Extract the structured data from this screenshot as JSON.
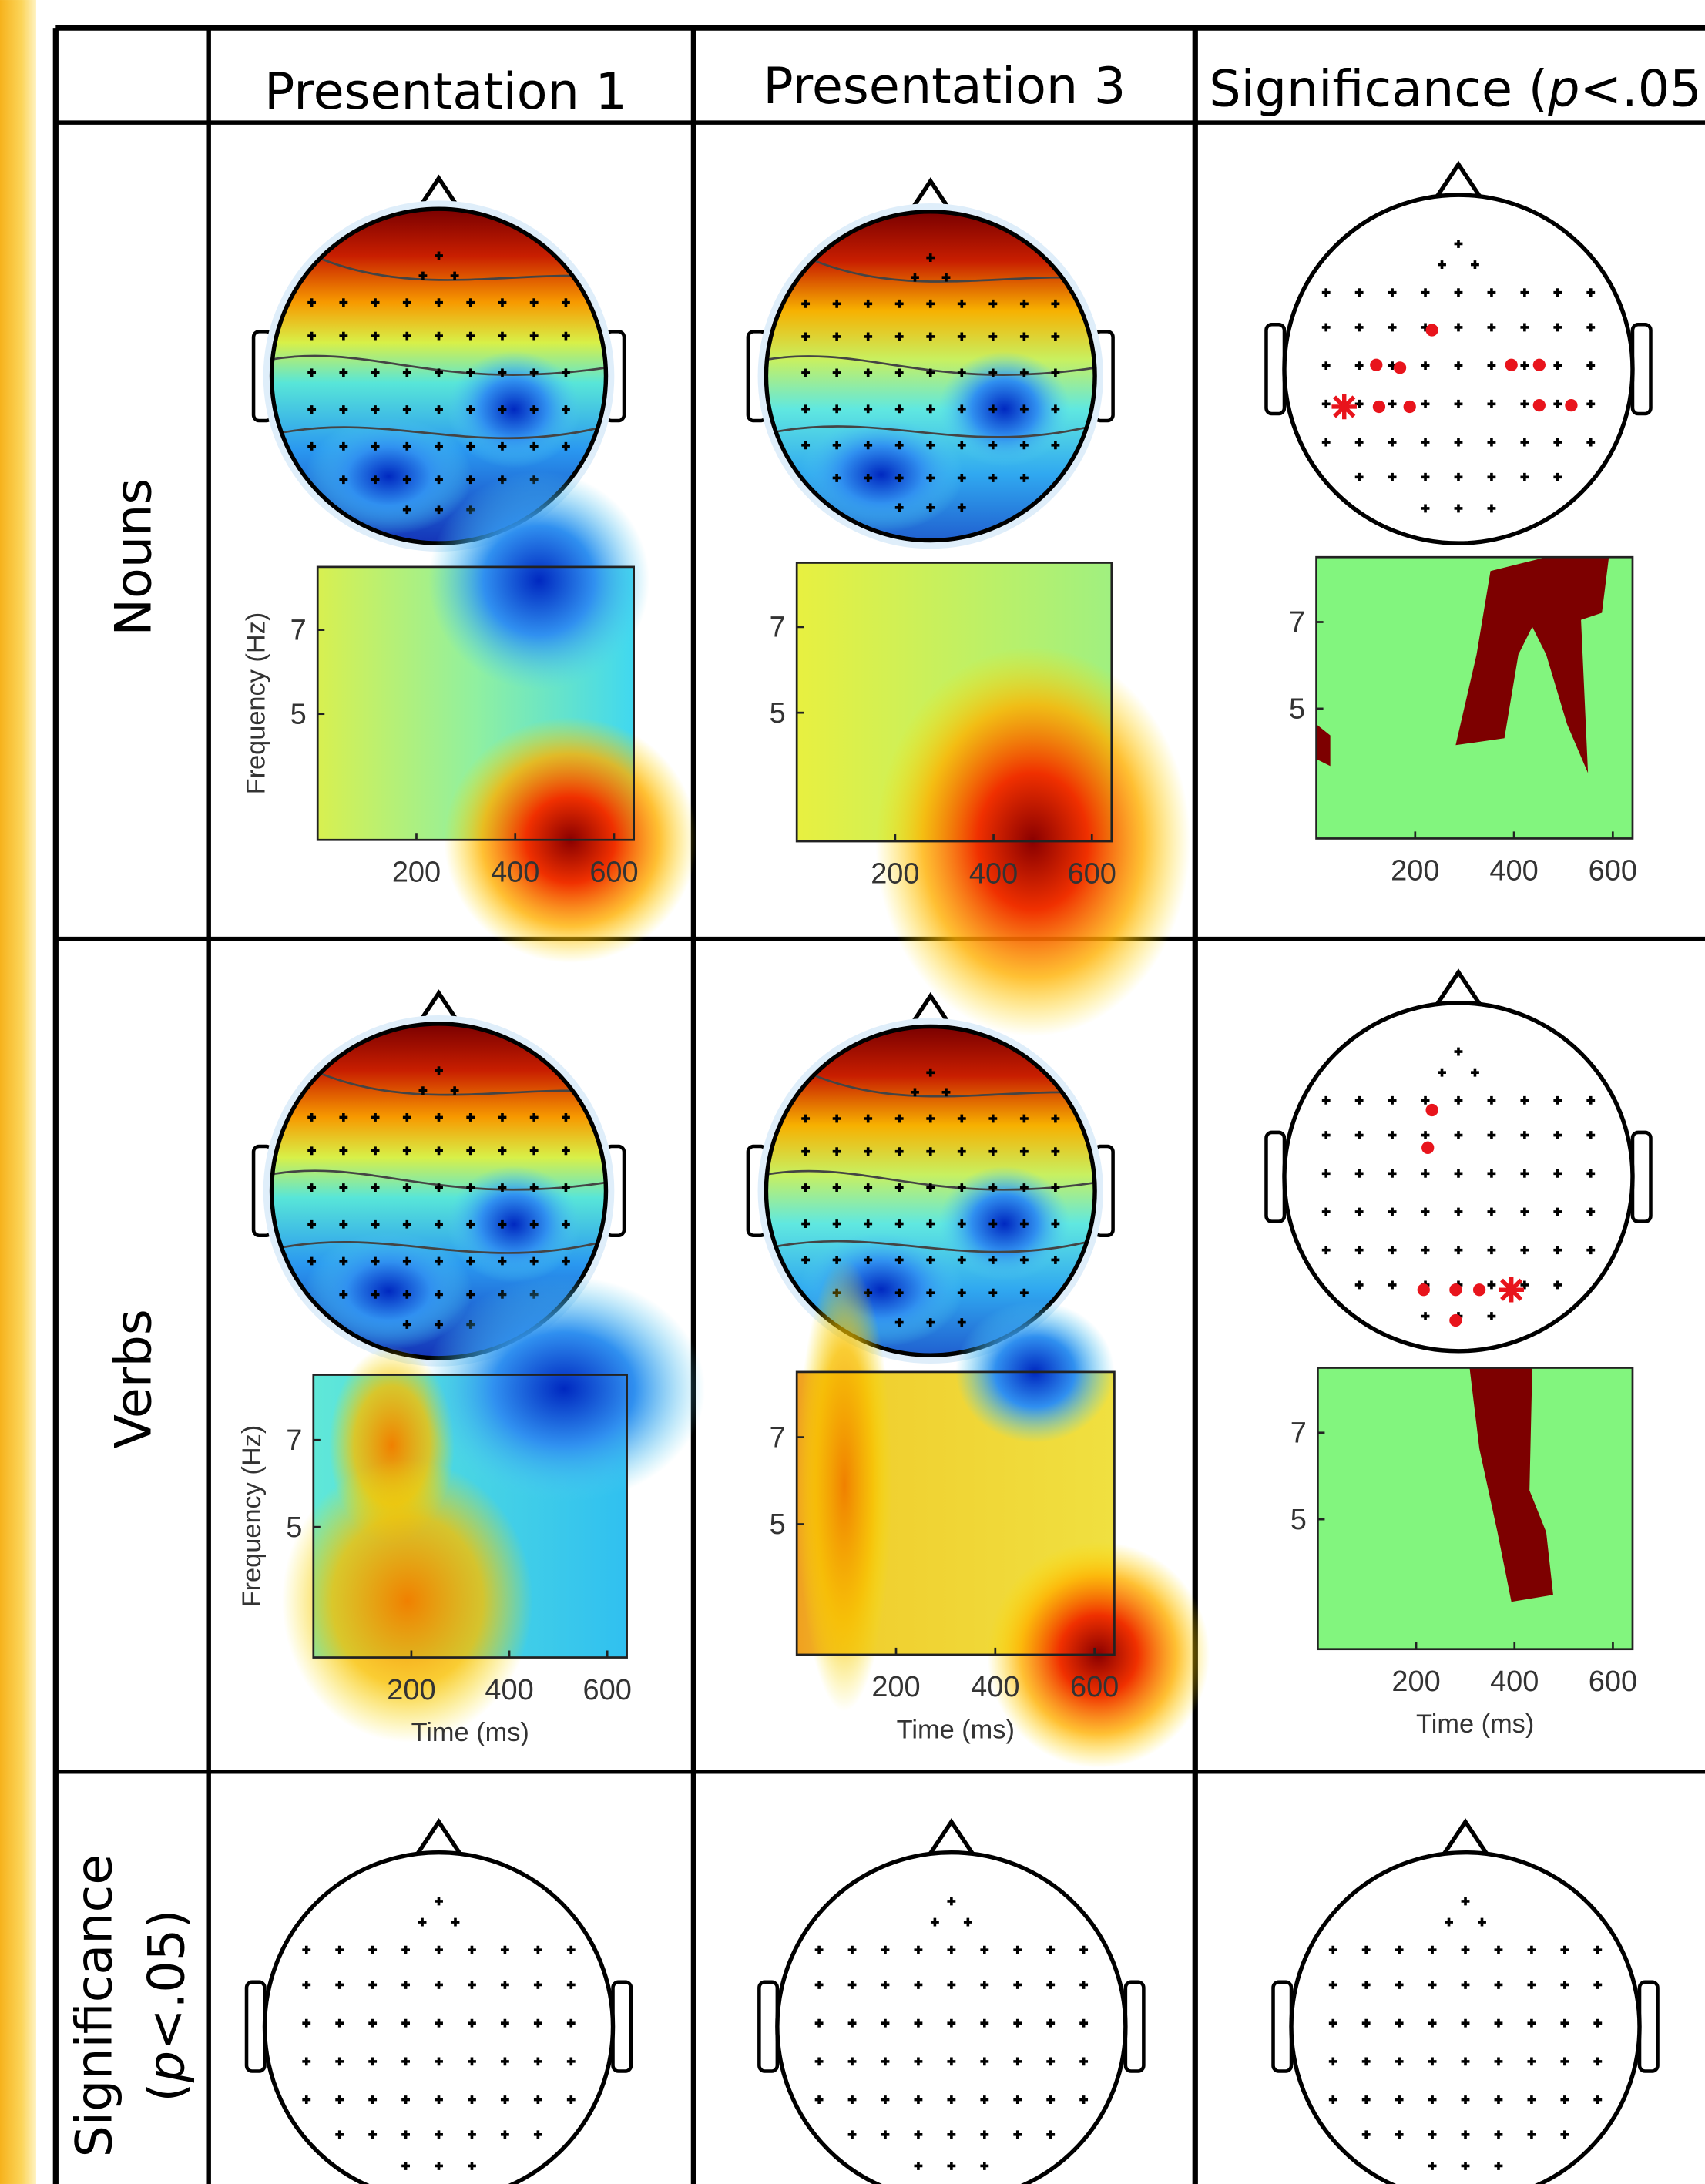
{
  "table": {
    "columns": [
      "Presentation 1",
      "Presentation 3",
      {
        "before": "Significance (",
        "italic": "p",
        "after": "<.05"
      }
    ],
    "rows": [
      "Nouns",
      "Verbs",
      {
        "line1": "Significance",
        "before": "(",
        "italic": "p",
        "after": "<.05)"
      }
    ]
  },
  "tf_axes": {
    "xlim": [
      0,
      640
    ],
    "ylim": [
      2,
      8.5
    ]
  },
  "tf_panels": [
    {
      "xticks": [
        200,
        400,
        600
      ],
      "yticks": [
        7,
        5
      ],
      "ylabel": "Frequency (Hz)"
    },
    {
      "xticks": [
        200,
        400,
        600
      ],
      "yticks": [
        7,
        5
      ]
    },
    {
      "xticks": [
        200,
        400,
        600
      ],
      "yticks": [
        7,
        5
      ]
    },
    {
      "xticks": [
        200,
        400,
        600
      ],
      "yticks": [
        7,
        5
      ],
      "ylabel": "Frequency (Hz)",
      "xlabel": "Time (ms)"
    },
    {
      "xticks": [
        200,
        400,
        600
      ],
      "yticks": [
        7,
        5
      ],
      "xlabel": "Time (ms)"
    },
    {
      "xticks": [
        200,
        400,
        600
      ],
      "yticks": [
        7,
        5
      ],
      "xlabel": "Time (ms)"
    }
  ]
}
